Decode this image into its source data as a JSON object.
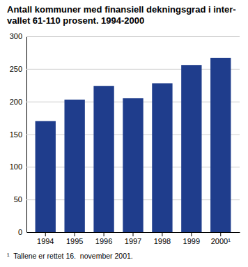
{
  "chart_data": {
    "type": "bar",
    "title": "Antall kommuner med finansiell dekningsgrad i inter-\nvallet 61-110 prosent. 1994-2000",
    "categories": [
      "1994",
      "1995",
      "1996",
      "1997",
      "1998",
      "1999",
      "2000¹"
    ],
    "values": [
      170,
      203,
      224,
      205,
      228,
      256,
      267
    ],
    "color": "#1f3d8c",
    "ylim": [
      0,
      300
    ],
    "yticks": [
      0,
      50,
      100,
      150,
      200,
      250,
      300
    ],
    "grid": true,
    "footnote": "¹  Tallene er rettet 16.  november 2001."
  }
}
